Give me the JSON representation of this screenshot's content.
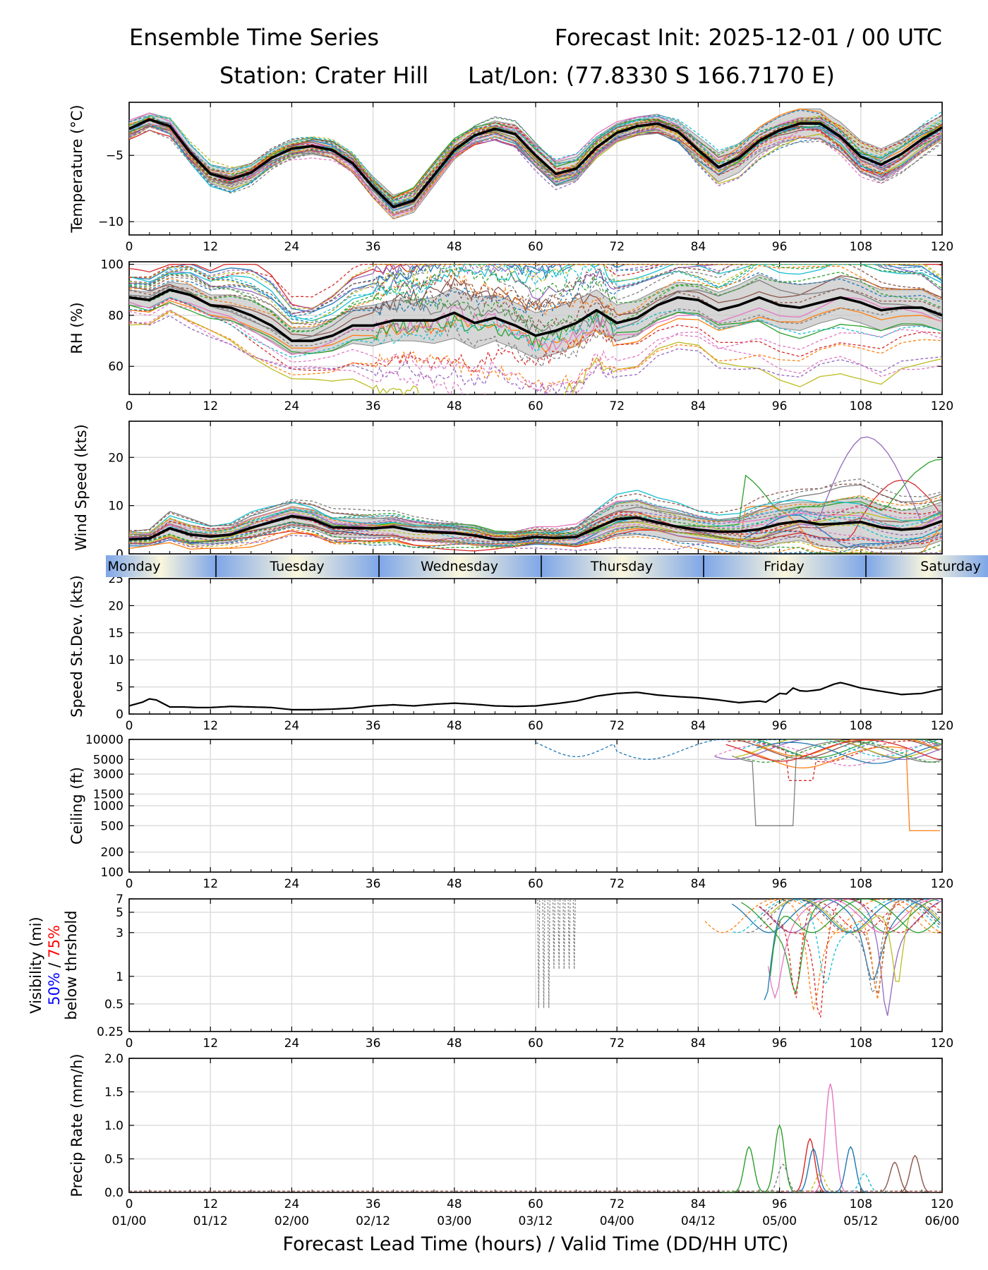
{
  "header": {
    "title_left": "Ensemble Time Series",
    "title_right": "Forecast Init: 2025-12-01 / 00 UTC",
    "station": "Station: Crater Hill",
    "latlon": "Lat/Lon: (77.8330 S 166.7170 E)"
  },
  "x_axis": {
    "ticks": [
      0,
      12,
      24,
      36,
      48,
      60,
      72,
      84,
      96,
      108,
      120
    ],
    "valid_time_labels": [
      "01/00",
      "01/12",
      "02/00",
      "02/12",
      "03/00",
      "03/12",
      "04/00",
      "04/12",
      "05/00",
      "05/12",
      "06/00"
    ],
    "label": "Forecast Lead Time (hours) / Valid Time (DD/HH UTC)"
  },
  "day_band": {
    "days": [
      "Monday",
      "Tuesday",
      "Wednesday",
      "Thursday",
      "Friday",
      "Saturday"
    ],
    "colors": {
      "light": "#fbf7dd",
      "blue": "#7ea6e8"
    }
  },
  "style": {
    "grid_color": "#dddddd",
    "mean_color": "#000000",
    "spread_color": "#c8c8c8",
    "member_colors": [
      "#1f77b4",
      "#ff7f0e",
      "#2ca02c",
      "#d62728",
      "#9467bd",
      "#8c564b",
      "#e377c2",
      "#7f7f7f",
      "#bcbd22",
      "#17becf"
    ]
  },
  "chart_data": [
    {
      "type": "line",
      "id": "temperature",
      "ylabel": "Temperature (°C)",
      "xlim": [
        0,
        120
      ],
      "ylim": [
        -11,
        -1
      ],
      "yticks": [
        -10,
        -5
      ],
      "mean": {
        "x": [
          0,
          3,
          6,
          9,
          12,
          15,
          18,
          21,
          24,
          27,
          30,
          33,
          36,
          39,
          42,
          45,
          48,
          51,
          54,
          57,
          60,
          63,
          66,
          69,
          72,
          75,
          78,
          81,
          84,
          87,
          90,
          93,
          96,
          99,
          102,
          105,
          108,
          111,
          114,
          117,
          120
        ],
        "y": [
          -3.0,
          -2.3,
          -2.8,
          -4.8,
          -6.4,
          -6.8,
          -6.3,
          -5.2,
          -4.5,
          -4.3,
          -4.6,
          -5.6,
          -7.4,
          -8.9,
          -8.4,
          -6.5,
          -4.6,
          -3.5,
          -3.0,
          -3.4,
          -5.0,
          -6.4,
          -6.0,
          -4.4,
          -3.3,
          -2.8,
          -2.6,
          -3.2,
          -4.6,
          -5.9,
          -5.2,
          -3.9,
          -3.1,
          -2.6,
          -2.6,
          -3.6,
          -5.1,
          -5.7,
          -4.9,
          -3.8,
          -2.9
        ]
      },
      "spread": {
        "width": [
          0.5,
          0.5,
          0.6,
          0.6,
          0.7,
          0.8,
          0.7,
          0.6,
          0.6,
          0.6,
          0.6,
          0.7,
          0.8,
          0.9,
          0.9,
          0.8,
          0.7,
          0.6,
          0.6,
          0.7,
          0.8,
          0.9,
          0.9,
          0.8,
          0.7,
          0.7,
          0.7,
          0.8,
          1.0,
          1.1,
          1.1,
          1.0,
          1.0,
          1.1,
          1.1,
          1.1,
          1.2,
          1.2,
          1.1,
          1.0,
          0.9
        ]
      },
      "members": {
        "count": 30,
        "amplitude": 1.3,
        "note": "ensemble member traces shown as thin solid/dashed coloured lines"
      }
    },
    {
      "type": "line",
      "id": "relative_humidity",
      "ylabel": "RH (%)",
      "xlim": [
        0,
        120
      ],
      "ylim": [
        49,
        101
      ],
      "yticks": [
        60,
        80,
        100
      ],
      "mean": {
        "x": [
          0,
          3,
          6,
          9,
          12,
          15,
          18,
          21,
          24,
          27,
          30,
          33,
          36,
          39,
          42,
          45,
          48,
          51,
          54,
          57,
          60,
          63,
          66,
          69,
          72,
          75,
          78,
          81,
          84,
          87,
          90,
          93,
          96,
          99,
          102,
          105,
          108,
          111,
          114,
          117,
          120
        ],
        "y": [
          87,
          86,
          90,
          88,
          84,
          83,
          80,
          76,
          70,
          70,
          72,
          76,
          76,
          78,
          78,
          78,
          81,
          77,
          79,
          76,
          72,
          74,
          77,
          82,
          77,
          79,
          84,
          87,
          86,
          82,
          84,
          87,
          84,
          83,
          85,
          87,
          85,
          82,
          83,
          83,
          80
        ]
      },
      "spread": {
        "width": [
          3,
          3,
          3,
          4,
          4,
          5,
          6,
          6,
          5,
          5,
          6,
          7,
          8,
          8,
          8,
          9,
          10,
          10,
          9,
          9,
          9,
          9,
          9,
          8,
          7,
          7,
          6,
          6,
          6,
          7,
          8,
          9,
          9,
          9,
          8,
          8,
          8,
          8,
          7,
          7,
          6
        ]
      },
      "members": {
        "count": 30,
        "amplitude": 7,
        "note": "noisy ensemble member traces between roughly 50 and 100 percent"
      }
    },
    {
      "type": "line",
      "id": "wind_speed",
      "ylabel": "Wind Speed (kts)",
      "xlim": [
        0,
        120
      ],
      "ylim": [
        0,
        27.5
      ],
      "yticks": [
        0,
        10,
        20
      ],
      "mean": {
        "x": [
          0,
          3,
          6,
          9,
          12,
          15,
          18,
          21,
          24,
          27,
          30,
          33,
          36,
          39,
          42,
          45,
          48,
          51,
          54,
          57,
          60,
          63,
          66,
          69,
          72,
          75,
          78,
          81,
          84,
          87,
          90,
          93,
          96,
          99,
          102,
          105,
          108,
          111,
          114,
          117,
          120
        ],
        "y": [
          3,
          3.2,
          5.3,
          4,
          3.6,
          4,
          5.4,
          6.6,
          7.8,
          7.2,
          5.5,
          5.4,
          5.3,
          5.6,
          4.8,
          4.5,
          4.3,
          3.8,
          3.0,
          3.0,
          3.5,
          3.3,
          3.5,
          5.4,
          7.2,
          7.5,
          6.5,
          5.6,
          5.0,
          4.6,
          4.6,
          5.1,
          6.2,
          6.8,
          6.1,
          6.3,
          6.6,
          5.5,
          5.0,
          5.3,
          6.8
        ]
      },
      "spread": {
        "width": [
          1,
          1,
          2,
          2,
          1.5,
          1.5,
          2,
          2,
          2,
          2,
          2,
          2,
          2,
          2,
          2,
          2,
          2,
          2,
          1.5,
          1.5,
          1.5,
          1.5,
          2,
          3,
          3.5,
          3.5,
          3,
          3,
          2.5,
          2.5,
          3,
          4,
          4,
          4,
          4.5,
          5,
          5,
          4.5,
          4,
          4,
          4
        ]
      },
      "members": {
        "count": 30,
        "amplitude": 2.5,
        "note": "member traces; a few reach 15-27 kts after hour 90"
      }
    },
    {
      "type": "line",
      "id": "speed_std_dev",
      "ylabel": "Speed St.Dev. (kts)",
      "xlim": [
        0,
        120
      ],
      "ylim": [
        0,
        25
      ],
      "yticks": [
        0,
        5,
        10,
        15,
        20,
        25
      ],
      "series": [
        {
          "name": "std dev",
          "x": [
            0,
            2,
            3,
            4,
            6,
            8,
            10,
            12,
            15,
            18,
            21,
            24,
            27,
            30,
            33,
            36,
            39,
            42,
            45,
            48,
            51,
            54,
            57,
            60,
            63,
            66,
            69,
            72,
            75,
            78,
            81,
            84,
            87,
            90,
            93,
            94,
            96,
            97,
            98,
            99,
            100,
            102,
            104,
            105,
            106,
            108,
            111,
            114,
            117,
            120
          ],
          "y": [
            1.5,
            2.2,
            2.8,
            2.6,
            1.3,
            1.3,
            1.2,
            1.2,
            1.4,
            1.3,
            1.2,
            0.8,
            0.8,
            0.9,
            1.1,
            1.5,
            1.7,
            1.5,
            1.8,
            2.0,
            1.8,
            1.5,
            1.4,
            1.5,
            1.9,
            2.4,
            3.3,
            3.8,
            4.0,
            3.5,
            3.2,
            3.0,
            2.6,
            2.1,
            2.4,
            2.2,
            3.8,
            3.7,
            4.8,
            4.3,
            4.2,
            4.5,
            5.5,
            5.8,
            5.5,
            4.8,
            4.2,
            3.6,
            3.8,
            4.6
          ]
        }
      ]
    },
    {
      "type": "line",
      "id": "ceiling",
      "yscale": "log",
      "ylabel": "Ceiling (ft)",
      "xlim": [
        0,
        120
      ],
      "ylim": [
        100,
        10000
      ],
      "yticks": [
        100,
        200,
        500,
        1000,
        1500,
        3000,
        5000,
        10000
      ],
      "notes": "member traces below 10000 ft only after hour 60; one member dips to 500 ft near hour 95, one drops to 400 ft after hour 115"
    },
    {
      "type": "line",
      "id": "visibility",
      "yscale": "log",
      "ylabel": "Visibility (mi)",
      "threshold_label": {
        "prefix": "50%",
        "sep": " / ",
        "suffix": "75%",
        "line2": "below thrshold",
        "colors": {
          "p50": "#0000ff",
          "p75": "#ff0000"
        }
      },
      "xlim": [
        0,
        120
      ],
      "ylim": [
        0.25,
        7
      ],
      "yticks": [
        0.25,
        0.5,
        1,
        3,
        5,
        7
      ],
      "notes": "dashed grey dips to ~0.5 mi at hours 60-66; many members below 7 mi after hour 85 with minima near 0.3-0.6 mi"
    },
    {
      "type": "line",
      "id": "precip_rate",
      "ylabel": "Precip Rate (mm/h)",
      "xlim": [
        0,
        120
      ],
      "ylim": [
        0,
        2
      ],
      "yticks": [
        0.0,
        0.5,
        1.0,
        1.5,
        2.0
      ],
      "peaks": [
        {
          "x": 91.5,
          "y": 0.68,
          "member": 2
        },
        {
          "x": 96,
          "y": 1.0,
          "member": 2
        },
        {
          "x": 96.5,
          "y": 0.42,
          "member": 7
        },
        {
          "x": 100.5,
          "y": 0.8,
          "member": 3
        },
        {
          "x": 101,
          "y": 0.65,
          "member": 0
        },
        {
          "x": 102,
          "y": 0.28,
          "member": 8
        },
        {
          "x": 103.5,
          "y": 1.62,
          "member": 6
        },
        {
          "x": 106.5,
          "y": 0.68,
          "member": 0
        },
        {
          "x": 108.5,
          "y": 0.28,
          "member": 9
        },
        {
          "x": 113,
          "y": 0.45,
          "member": 5
        },
        {
          "x": 116,
          "y": 0.55,
          "member": 5
        }
      ]
    }
  ]
}
